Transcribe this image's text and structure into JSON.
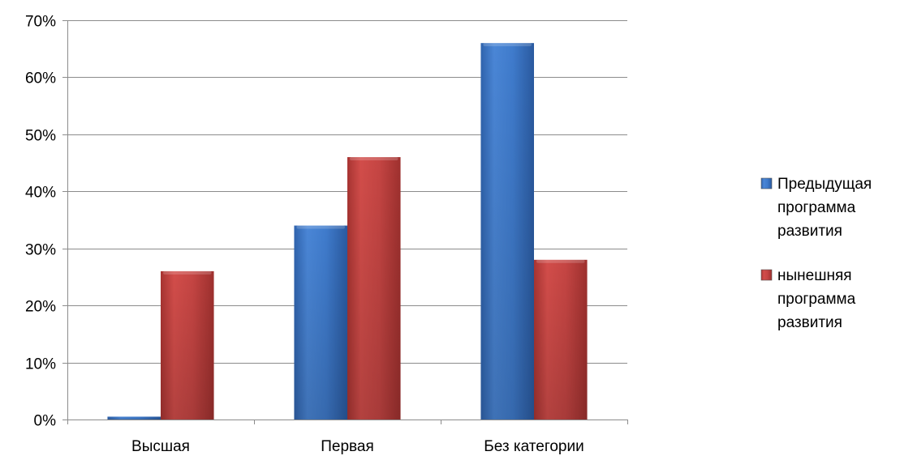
{
  "chart_data": {
    "type": "bar",
    "title": "",
    "xlabel": "",
    "ylabel": "",
    "categories": [
      "Высшая",
      "Первая",
      "Без категории"
    ],
    "series": [
      {
        "name": "Предыдущая программа развития",
        "legend_lines": [
          "Предыдущая",
          "программа",
          "развития"
        ],
        "color": "#4a86d6",
        "values": [
          0.005,
          0.34,
          0.66
        ]
      },
      {
        "name": "нынешняя программа развития",
        "legend_lines": [
          "нынешняя",
          "программа",
          "развития"
        ],
        "color": "#cf4a48",
        "values": [
          0.26,
          0.46,
          0.28
        ]
      }
    ],
    "ylim": [
      0,
      0.7
    ],
    "yticks": [
      "0%",
      "10%",
      "20%",
      "30%",
      "40%",
      "50%",
      "60%",
      "70%"
    ],
    "grid": true,
    "legend_position": "right"
  }
}
